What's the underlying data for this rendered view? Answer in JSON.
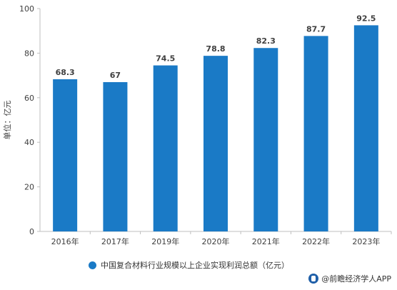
{
  "chart_data": {
    "type": "bar",
    "categories": [
      "2016年",
      "2017年",
      "2019年",
      "2020年",
      "2021年",
      "2022年",
      "2023年"
    ],
    "values": [
      68.3,
      67,
      74.5,
      78.8,
      82.3,
      87.7,
      92.5
    ],
    "value_labels": [
      "68.3",
      "67",
      "74.5",
      "78.8",
      "82.3",
      "87.7",
      "92.5"
    ],
    "series": [
      {
        "name": "中国复合材料行业规模以上企业实现利润总额（亿元）",
        "values": [
          68.3,
          67,
          74.5,
          78.8,
          82.3,
          87.7,
          92.5
        ]
      }
    ],
    "ylabel": "单位：亿元",
    "ylim": [
      0,
      100
    ],
    "yticks": [
      0,
      20,
      40,
      60,
      80,
      100
    ],
    "grid": false,
    "legend_position": "bottom",
    "bar_color": "#1a7ac6"
  },
  "footer": {
    "text": "@前瞻经济学人APP"
  },
  "colors": {
    "bar": "#1a7ac6",
    "axis": "#bfbfbf"
  }
}
